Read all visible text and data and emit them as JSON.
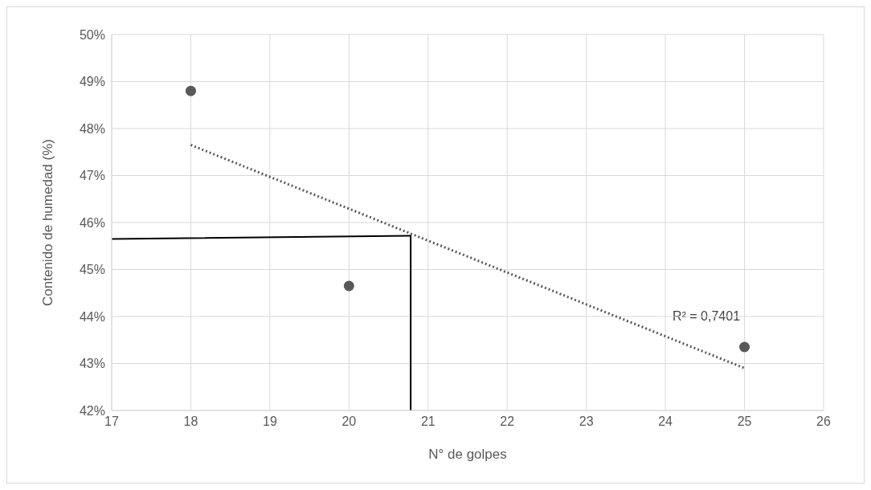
{
  "chart_data": {
    "type": "scatter",
    "xlabel": "N° de golpes",
    "ylabel": "Contenido de humedad (%)",
    "xlim": [
      17,
      26
    ],
    "xticks": [
      17,
      18,
      19,
      20,
      21,
      22,
      23,
      24,
      25,
      26
    ],
    "ylim": [
      42,
      50
    ],
    "yticks": [
      {
        "value": 42,
        "label": "42%"
      },
      {
        "value": 43,
        "label": "43%"
      },
      {
        "value": 44,
        "label": "44%"
      },
      {
        "value": 45,
        "label": "45%"
      },
      {
        "value": 46,
        "label": "46%"
      },
      {
        "value": 47,
        "label": "47%"
      },
      {
        "value": 48,
        "label": "48%"
      },
      {
        "value": 49,
        "label": "49%"
      },
      {
        "value": 50,
        "label": "50%"
      }
    ],
    "grid": true,
    "series": [
      {
        "color": "#595959",
        "marker": "circle",
        "x": [
          18,
          20,
          25
        ],
        "values": [
          48.8,
          44.65,
          43.35
        ]
      },
      {
        "type": "line",
        "color": "#595959",
        "line_style": "dotted",
        "x": [
          18,
          25
        ],
        "values": [
          47.65,
          42.9
        ]
      },
      {
        "type": "line",
        "color": "#000000",
        "line_style": "solid",
        "x": [
          17,
          20.78,
          20.78
        ],
        "values": [
          45.65,
          45.72,
          42
        ]
      }
    ],
    "annotations": [
      "R² = 0,7401"
    ]
  }
}
